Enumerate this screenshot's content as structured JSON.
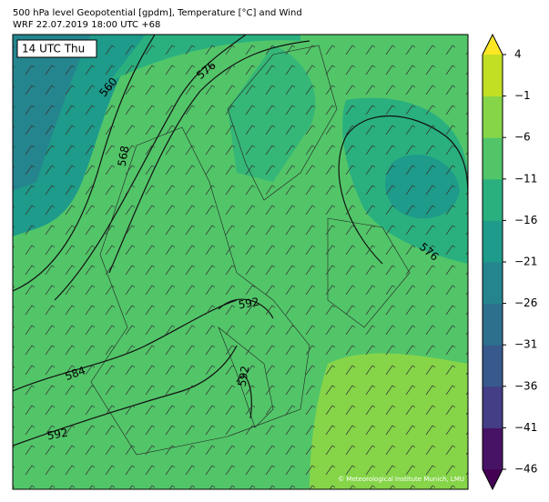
{
  "header": {
    "title": "500 hPa level Geopotential [gpdm], Temperature [°C] and Wind",
    "subtitle": "WRF 22.07.2019 18:00 UTC +68"
  },
  "map": {
    "time_label": "14 UTC Thu",
    "contour_labels": [
      {
        "text": "560"
      },
      {
        "text": "576"
      },
      {
        "text": "568"
      },
      {
        "text": "576"
      },
      {
        "text": "592"
      },
      {
        "text": "584"
      },
      {
        "text": "592"
      },
      {
        "text": "592"
      }
    ],
    "credit": "© Meteorological Institute Munich, LMU"
  },
  "colorbar": {
    "lim": [
      -46,
      4
    ],
    "ticks": [
      {
        "value": 4,
        "label": "4"
      },
      {
        "value": -1,
        "label": "−1"
      },
      {
        "value": -6,
        "label": "−6"
      },
      {
        "value": -11,
        "label": "−11"
      },
      {
        "value": -16,
        "label": "−16"
      },
      {
        "value": -21,
        "label": "−21"
      },
      {
        "value": -26,
        "label": "−26"
      },
      {
        "value": -31,
        "label": "−31"
      },
      {
        "value": -36,
        "label": "−36"
      },
      {
        "value": -41,
        "label": "−41"
      },
      {
        "value": -46,
        "label": "−46"
      }
    ],
    "colors": [
      "#471365",
      "#433e85",
      "#38598c",
      "#2d708e",
      "#25858e",
      "#1e9b8a",
      "#2ab07f",
      "#52c569",
      "#86d549",
      "#c2df23"
    ],
    "under_color": "#440154",
    "over_color": "#fde725"
  }
}
